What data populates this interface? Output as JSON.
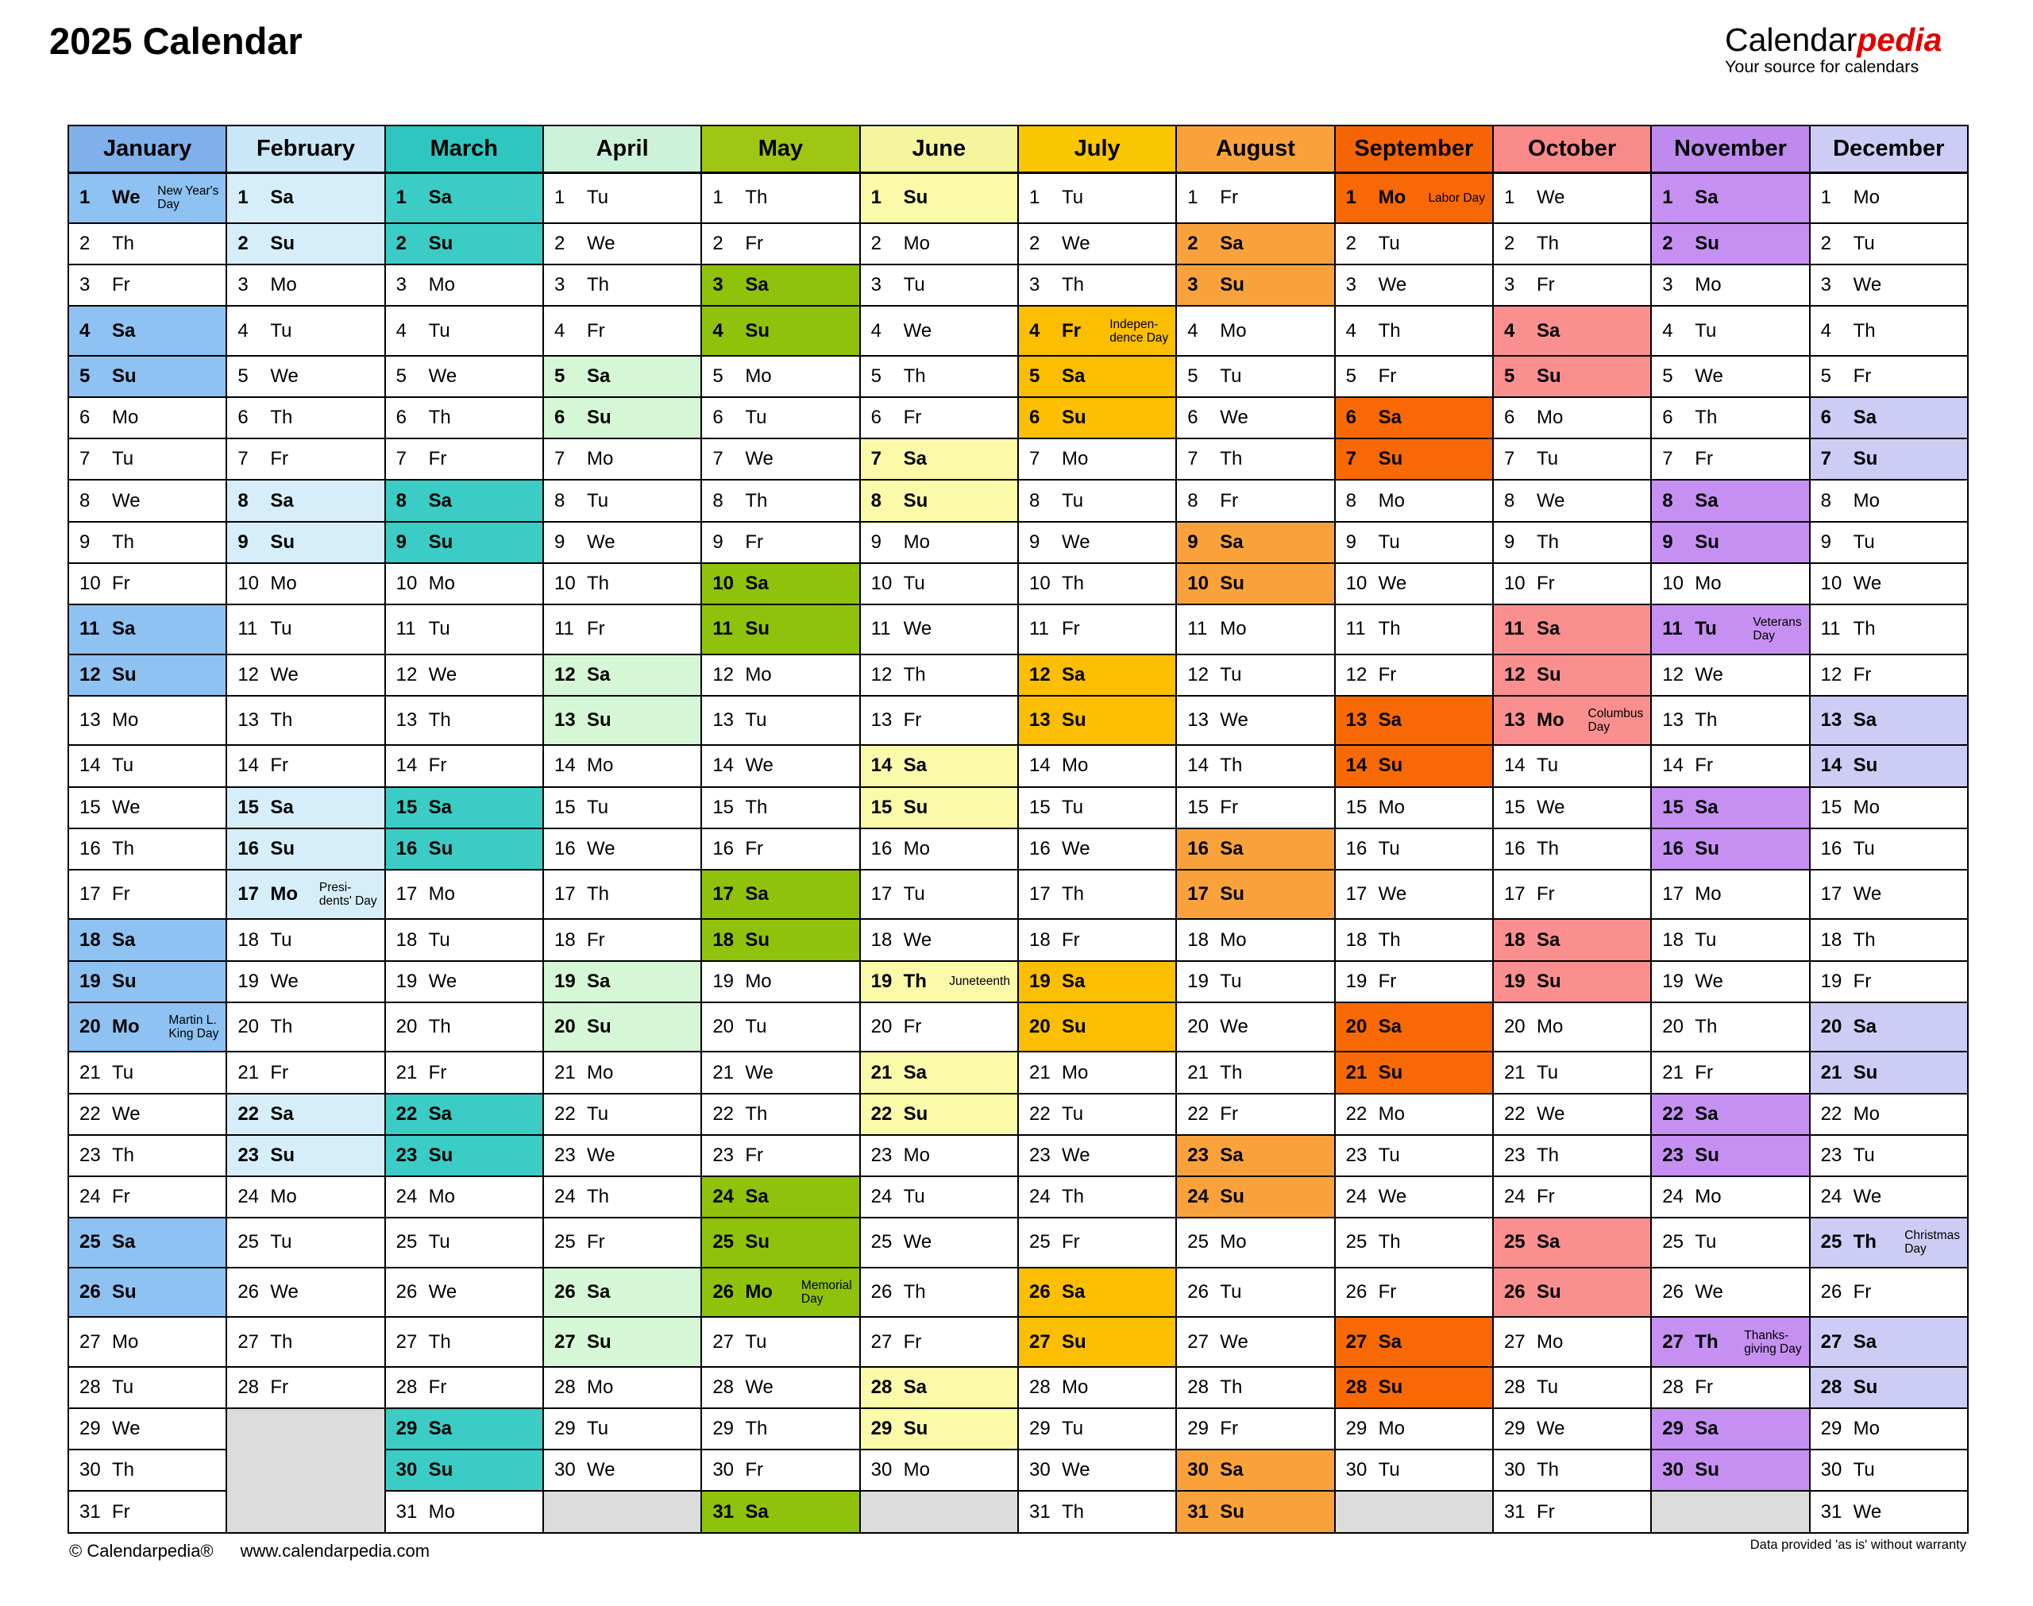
{
  "page": {
    "title": "2025 Calendar",
    "logo": {
      "name_black": "Calendar",
      "name_red": "pedia",
      "red_color": "#e00000",
      "tagline": "Your source for calendars"
    },
    "footer": {
      "copyright": "© Calendarpedia®",
      "website": "www.calendarpedia.com",
      "disclaimer": "Data provided 'as is' without warranty"
    }
  },
  "calendar": {
    "year": "2025",
    "weekday_abbr": [
      "Mo",
      "Tu",
      "We",
      "Th",
      "Fr",
      "Sa",
      "Su"
    ],
    "weekend_days": [
      "Sa",
      "Su"
    ],
    "empty_cell_color": "#dcdcdc",
    "grid_color": "#000000",
    "months": [
      {
        "name": "January",
        "days": 31,
        "start": 2,
        "header_color": "#7fb0ea",
        "weekend_color": "#8ec2f2",
        "holidays": [
          {
            "day": 1,
            "lines": [
              "New Year's",
              "Day"
            ]
          },
          {
            "day": 20,
            "lines": [
              "Martin L.",
              "King Day"
            ]
          }
        ]
      },
      {
        "name": "February",
        "days": 28,
        "start": 5,
        "header_color": "#c9e7f6",
        "weekend_color": "#d6eef9",
        "holidays": [
          {
            "day": 17,
            "lines": [
              "Presi-",
              "dents' Day"
            ]
          }
        ]
      },
      {
        "name": "March",
        "days": 31,
        "start": 5,
        "header_color": "#2ec6bf",
        "weekend_color": "#3accc5",
        "holidays": []
      },
      {
        "name": "April",
        "days": 30,
        "start": 1,
        "header_color": "#cdf2da",
        "weekend_color": "#d5f7d5",
        "holidays": []
      },
      {
        "name": "May",
        "days": 31,
        "start": 3,
        "header_color": "#a0c614",
        "weekend_color": "#8fc20b",
        "holidays": [
          {
            "day": 26,
            "lines": [
              "Memorial",
              "Day"
            ]
          }
        ]
      },
      {
        "name": "June",
        "days": 30,
        "start": 6,
        "header_color": "#f5f59e",
        "weekend_color": "#fafaa8",
        "holidays": [
          {
            "day": 19,
            "lines": [
              "Juneteenth"
            ]
          }
        ]
      },
      {
        "name": "July",
        "days": 31,
        "start": 1,
        "header_color": "#fac502",
        "weekend_color": "#fbbe00",
        "holidays": [
          {
            "day": 4,
            "lines": [
              "Indepen-",
              "dence Day"
            ]
          }
        ]
      },
      {
        "name": "August",
        "days": 31,
        "start": 4,
        "header_color": "#f9a23c",
        "weekend_color": "#f9a23c",
        "holidays": []
      },
      {
        "name": "September",
        "days": 30,
        "start": 0,
        "header_color": "#f56505",
        "weekend_color": "#f86905",
        "holidays": [
          {
            "day": 1,
            "lines": [
              "Labor Day"
            ]
          }
        ]
      },
      {
        "name": "October",
        "days": 31,
        "start": 2,
        "header_color": "#f98a8a",
        "weekend_color": "#fa8f90",
        "holidays": [
          {
            "day": 13,
            "lines": [
              "Columbus",
              "Day"
            ]
          }
        ]
      },
      {
        "name": "November",
        "days": 30,
        "start": 5,
        "header_color": "#be8aee",
        "weekend_color": "#c690f2",
        "holidays": [
          {
            "day": 11,
            "lines": [
              "Veterans",
              "Day"
            ]
          },
          {
            "day": 27,
            "lines": [
              "Thanks-",
              "giving Day"
            ]
          }
        ]
      },
      {
        "name": "December",
        "days": 31,
        "start": 0,
        "header_color": "#ccccf5",
        "weekend_color": "#ccccf5",
        "holidays": [
          {
            "day": 25,
            "lines": [
              "Christmas",
              "Day"
            ]
          }
        ]
      }
    ]
  }
}
